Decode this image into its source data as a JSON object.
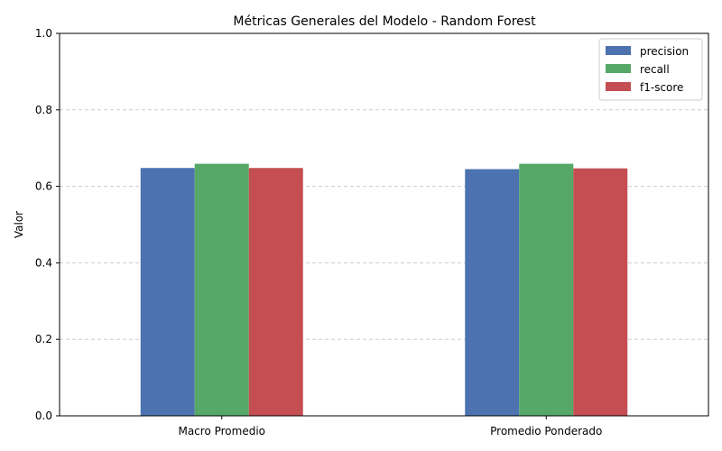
{
  "chart_data": {
    "type": "bar",
    "title": "Métricas Generales del Modelo - Random Forest",
    "xlabel": "",
    "ylabel": "Valor",
    "ylim": [
      0,
      1.0
    ],
    "yticks": [
      "0.0",
      "0.2",
      "0.4",
      "0.6",
      "0.8",
      "1.0"
    ],
    "categories": [
      "Macro Promedio",
      "Promedio Ponderado"
    ],
    "series": [
      {
        "name": "precision",
        "color": "#4c72b0",
        "values": [
          0.648,
          0.645
        ]
      },
      {
        "name": "recall",
        "color": "#55a868",
        "values": [
          0.659,
          0.659
        ]
      },
      {
        "name": "f1-score",
        "color": "#c44e52",
        "values": [
          0.648,
          0.647
        ]
      }
    ],
    "grid": "y-dashed",
    "legend_position": "top-right"
  }
}
